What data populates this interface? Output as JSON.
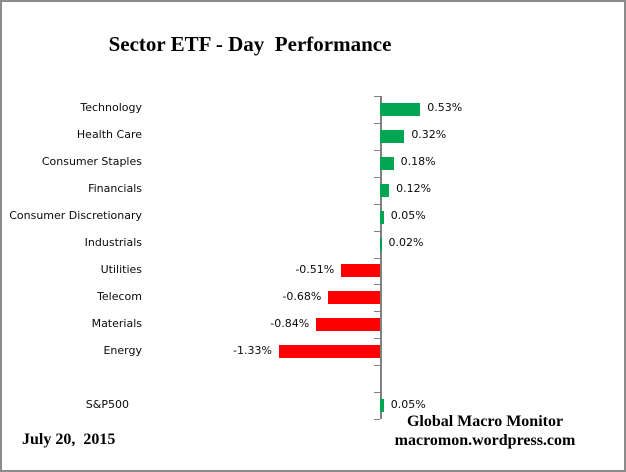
{
  "window": {
    "background": "#FFFFFF",
    "border_color": "#8C8C8C"
  },
  "chart_data": {
    "type": "bar",
    "orientation": "horizontal",
    "title": "Sector ETF - Day  Performance",
    "categories": [
      "Technology",
      "Health Care",
      "Consumer Staples",
      "Financials",
      "Consumer Discretionary",
      "Industrials",
      "Utilities",
      "Telecom",
      "Materials",
      "Energy",
      "S&P500"
    ],
    "values": [
      0.53,
      0.32,
      0.18,
      0.12,
      0.05,
      0.02,
      -0.51,
      -0.68,
      -0.84,
      -1.33,
      0.05
    ],
    "value_labels": [
      "0.53%",
      "0.32%",
      "0.18%",
      "0.12%",
      "0.05%",
      "0.02%",
      "-0.51%",
      "-0.68%",
      "-0.84%",
      "-1.33%",
      "0.05%"
    ],
    "unit": "%",
    "xlim": [
      -1.6,
      1.6
    ],
    "positive_color": "#00A651",
    "negative_color": "#FF0000",
    "axis_color": "#808080",
    "gridlines": false,
    "legend": "none",
    "data_labels": true,
    "spacer_after_index": 9
  },
  "footer": {
    "date": "July 20,  2015",
    "attribution_line1": "Global Macro Monitor",
    "attribution_line2": "macromon.wordpress.com"
  }
}
